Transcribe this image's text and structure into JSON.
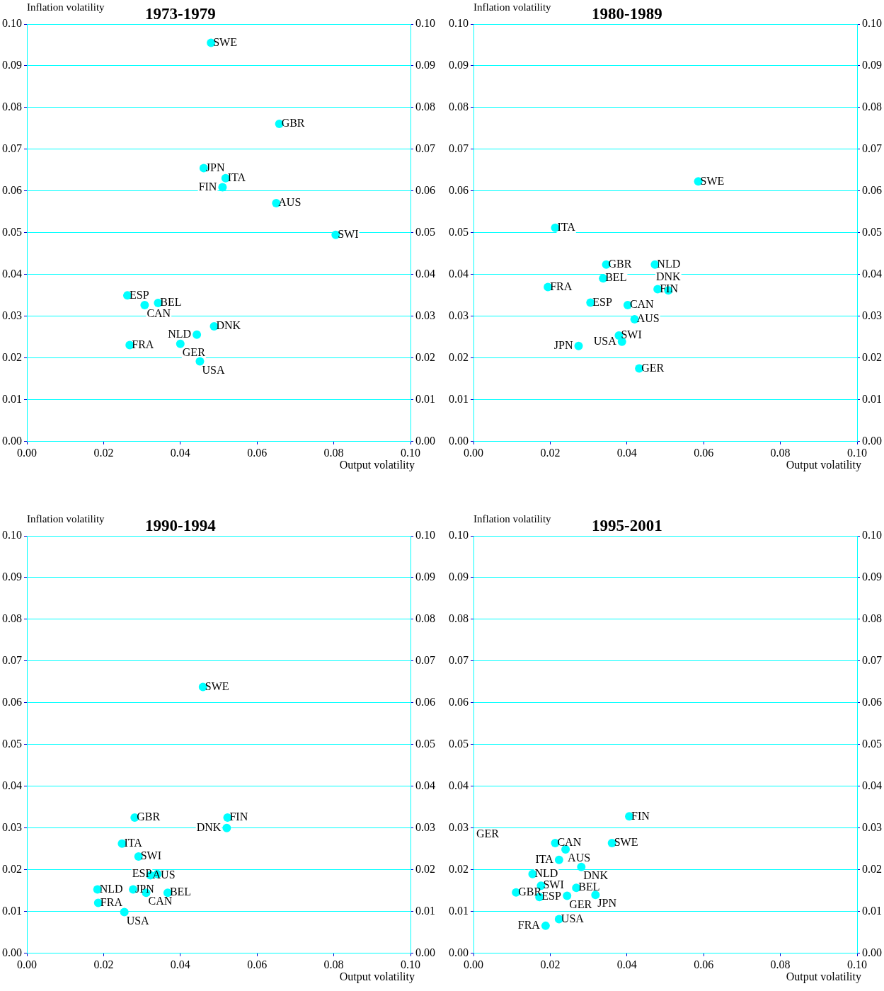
{
  "chart_data": [
    {
      "type": "scatter",
      "title": "1973-1979",
      "xlabel": "Output volatility",
      "ylabel": "Inflation volatility",
      "color": "#00ffff",
      "marker": "circle",
      "grid": "y",
      "xlim": [
        0,
        0.1
      ],
      "ylim": [
        0,
        0.1
      ],
      "y2lim": [
        0,
        0.1
      ],
      "xticks": [
        {
          "value": 0,
          "label": "0.00"
        },
        {
          "value": 0.02,
          "label": "0.02"
        },
        {
          "value": 0.04,
          "label": "0.04"
        },
        {
          "value": 0.06,
          "label": "0.06"
        },
        {
          "value": 0.08,
          "label": "0.08"
        },
        {
          "value": 0.1,
          "label": "0.10"
        }
      ],
      "yticks": [
        {
          "value": 0,
          "label": "0.00"
        },
        {
          "value": 0.01,
          "label": "0.01"
        },
        {
          "value": 0.02,
          "label": "0.02"
        },
        {
          "value": 0.03,
          "label": "0.03"
        },
        {
          "value": 0.04,
          "label": "0.04"
        },
        {
          "value": 0.05,
          "label": "0.05"
        },
        {
          "value": 0.06,
          "label": "0.06"
        },
        {
          "value": 0.07,
          "label": "0.07"
        },
        {
          "value": 0.08,
          "label": "0.08"
        },
        {
          "value": 0.09,
          "label": "0.09"
        },
        {
          "value": 0.1,
          "label": "0.10"
        }
      ],
      "y2ticks": [
        {
          "value": 0,
          "label": "0.00"
        },
        {
          "value": 0.01,
          "label": "0.01"
        },
        {
          "value": 0.02,
          "label": "0.02"
        },
        {
          "value": 0.03,
          "label": "0.03"
        },
        {
          "value": 0.04,
          "label": "0.04"
        },
        {
          "value": 0.05,
          "label": "0.05"
        },
        {
          "value": 0.06,
          "label": "0.06"
        },
        {
          "value": 0.07,
          "label": "0.07"
        },
        {
          "value": 0.08,
          "label": "0.08"
        },
        {
          "value": 0.09,
          "label": "0.09"
        },
        {
          "value": 0.1,
          "label": "0.10"
        }
      ],
      "x": [
        0.048,
        0.0658,
        0.0461,
        0.0518,
        0.051,
        0.065,
        0.0805,
        0.0262,
        0.0307,
        0.0342,
        0.0488,
        0.0443,
        0.0268,
        0.04,
        0.0451
      ],
      "values": [
        0.0955,
        0.0761,
        0.0655,
        0.0631,
        0.0609,
        0.0571,
        0.0495,
        0.035,
        0.0327,
        0.0332,
        0.0276,
        0.0256,
        0.0231,
        0.0234,
        0.0192
      ],
      "annotations": [
        {
          "text": "SWE",
          "x": 0.048,
          "y": 0.0955
        },
        {
          "text": "GBR",
          "x": 0.0658,
          "y": 0.0761
        },
        {
          "text": "JPN",
          "x": 0.0461,
          "y": 0.0655
        },
        {
          "text": "ITA",
          "x": 0.0518,
          "y": 0.0631
        },
        {
          "text": "FIN",
          "x": 0.051,
          "y": 0.0609
        },
        {
          "text": "AUS",
          "x": 0.065,
          "y": 0.0571
        },
        {
          "text": "SWI",
          "x": 0.0805,
          "y": 0.0495
        },
        {
          "text": "ESP",
          "x": 0.0262,
          "y": 0.035
        },
        {
          "text": "CAN",
          "x": 0.0307,
          "y": 0.0327
        },
        {
          "text": "BEL",
          "x": 0.0342,
          "y": 0.0332
        },
        {
          "text": "DNK",
          "x": 0.0488,
          "y": 0.0276
        },
        {
          "text": "NLD",
          "x": 0.0443,
          "y": 0.0256
        },
        {
          "text": "FRA",
          "x": 0.0268,
          "y": 0.0231
        },
        {
          "text": "GER",
          "x": 0.04,
          "y": 0.0234
        },
        {
          "text": "USA",
          "x": 0.0451,
          "y": 0.0192
        }
      ]
    },
    {
      "type": "scatter",
      "title": "1980-1989",
      "xlabel": "Output volatility",
      "ylabel": "Inflation volatility",
      "color": "#00ffff",
      "marker": "circle",
      "grid": "y",
      "xlim": [
        0,
        0.1
      ],
      "ylim": [
        0,
        0.1
      ],
      "y2lim": [
        0,
        0.1
      ],
      "xticks": [
        {
          "value": 0,
          "label": "0.00"
        },
        {
          "value": 0.02,
          "label": "0.02"
        },
        {
          "value": 0.04,
          "label": "0.04"
        },
        {
          "value": 0.06,
          "label": "0.06"
        },
        {
          "value": 0.08,
          "label": "0.08"
        },
        {
          "value": 0.1,
          "label": "0.10"
        }
      ],
      "yticks": [
        {
          "value": 0,
          "label": "0.00"
        },
        {
          "value": 0.01,
          "label": "0.01"
        },
        {
          "value": 0.02,
          "label": "0.02"
        },
        {
          "value": 0.03,
          "label": "0.03"
        },
        {
          "value": 0.04,
          "label": "0.04"
        },
        {
          "value": 0.05,
          "label": "0.05"
        },
        {
          "value": 0.06,
          "label": "0.06"
        },
        {
          "value": 0.07,
          "label": "0.07"
        },
        {
          "value": 0.08,
          "label": "0.08"
        },
        {
          "value": 0.09,
          "label": "0.09"
        },
        {
          "value": 0.1,
          "label": "0.10"
        }
      ],
      "y2ticks": [
        {
          "value": 0,
          "label": "0.00"
        },
        {
          "value": 0.01,
          "label": "0.01"
        },
        {
          "value": 0.02,
          "label": "0.02"
        },
        {
          "value": 0.03,
          "label": "0.03"
        },
        {
          "value": 0.04,
          "label": "0.04"
        },
        {
          "value": 0.05,
          "label": "0.05"
        },
        {
          "value": 0.06,
          "label": "0.06"
        },
        {
          "value": 0.07,
          "label": "0.07"
        },
        {
          "value": 0.08,
          "label": "0.08"
        },
        {
          "value": 0.09,
          "label": "0.09"
        },
        {
          "value": 0.1,
          "label": "0.10"
        }
      ],
      "x": [
        0.0586,
        0.0213,
        0.0346,
        0.0473,
        0.0338,
        0.0194,
        0.048,
        0.0508,
        0.0305,
        0.0402,
        0.042,
        0.0379,
        0.0387,
        0.0274,
        0.0432
      ],
      "values": [
        0.0623,
        0.0512,
        0.0424,
        0.0424,
        0.0391,
        0.037,
        0.0365,
        0.0362,
        0.0333,
        0.0327,
        0.0293,
        0.0254,
        0.0239,
        0.0229,
        0.0175
      ],
      "annotations": [
        {
          "text": "SWE",
          "x": 0.0586,
          "y": 0.0623
        },
        {
          "text": "ITA",
          "x": 0.0213,
          "y": 0.0512
        },
        {
          "text": "GBR",
          "x": 0.0346,
          "y": 0.0424
        },
        {
          "text": "NLD",
          "x": 0.0473,
          "y": 0.0424
        },
        {
          "text": "BEL",
          "x": 0.0338,
          "y": 0.0391
        },
        {
          "text": "FRA",
          "x": 0.0194,
          "y": 0.037
        },
        {
          "text": "FIN",
          "x": 0.048,
          "y": 0.0365
        },
        {
          "text": "DNK",
          "x": 0.0508,
          "y": 0.0362
        },
        {
          "text": "ESP",
          "x": 0.0305,
          "y": 0.0333
        },
        {
          "text": "CAN",
          "x": 0.0402,
          "y": 0.0327
        },
        {
          "text": "AUS",
          "x": 0.042,
          "y": 0.0293
        },
        {
          "text": "SWI",
          "x": 0.0379,
          "y": 0.0254
        },
        {
          "text": "USA",
          "x": 0.0387,
          "y": 0.0239
        },
        {
          "text": "JPN",
          "x": 0.0274,
          "y": 0.0229
        },
        {
          "text": "GER",
          "x": 0.0432,
          "y": 0.0175
        }
      ]
    },
    {
      "type": "scatter",
      "title": "1990-1994",
      "xlabel": "Output volatility",
      "ylabel": "Inflation volatility",
      "color": "#00ffff",
      "marker": "circle",
      "grid": "y",
      "xlim": [
        0,
        0.1
      ],
      "ylim": [
        0,
        0.1
      ],
      "y2lim": [
        0,
        0.1
      ],
      "xticks": [
        {
          "value": 0,
          "label": "0.00"
        },
        {
          "value": 0.02,
          "label": "0.02"
        },
        {
          "value": 0.04,
          "label": "0.04"
        },
        {
          "value": 0.06,
          "label": "0.06"
        },
        {
          "value": 0.08,
          "label": "0.08"
        },
        {
          "value": 0.1,
          "label": "0.10"
        }
      ],
      "yticks": [
        {
          "value": 0,
          "label": "0.00"
        },
        {
          "value": 0.01,
          "label": "0.01"
        },
        {
          "value": 0.02,
          "label": "0.02"
        },
        {
          "value": 0.03,
          "label": "0.03"
        },
        {
          "value": 0.04,
          "label": "0.04"
        },
        {
          "value": 0.05,
          "label": "0.05"
        },
        {
          "value": 0.06,
          "label": "0.06"
        },
        {
          "value": 0.07,
          "label": "0.07"
        },
        {
          "value": 0.08,
          "label": "0.08"
        },
        {
          "value": 0.09,
          "label": "0.09"
        },
        {
          "value": 0.1,
          "label": "0.10"
        }
      ],
      "y2ticks": [
        {
          "value": 0,
          "label": "0.00"
        },
        {
          "value": 0.01,
          "label": "0.01"
        },
        {
          "value": 0.02,
          "label": "0.02"
        },
        {
          "value": 0.03,
          "label": "0.03"
        },
        {
          "value": 0.04,
          "label": "0.04"
        },
        {
          "value": 0.05,
          "label": "0.05"
        },
        {
          "value": 0.06,
          "label": "0.06"
        },
        {
          "value": 0.07,
          "label": "0.07"
        },
        {
          "value": 0.08,
          "label": "0.08"
        },
        {
          "value": 0.09,
          "label": "0.09"
        },
        {
          "value": 0.1,
          "label": "0.10"
        }
      ],
      "x": [
        0.0459,
        0.0281,
        0.0523,
        0.0521,
        0.0248,
        0.0291,
        0.0322,
        0.034,
        0.0184,
        0.0277,
        0.0311,
        0.0367,
        0.0186,
        0.0254
      ],
      "values": [
        0.0638,
        0.0325,
        0.0325,
        0.03,
        0.0263,
        0.0232,
        0.0187,
        0.019,
        0.0153,
        0.0153,
        0.0145,
        0.0145,
        0.0121,
        0.0099
      ],
      "annotations": [
        {
          "text": "SWE",
          "x": 0.0459,
          "y": 0.0638
        },
        {
          "text": "GBR",
          "x": 0.0281,
          "y": 0.0325
        },
        {
          "text": "FIN",
          "x": 0.0523,
          "y": 0.0325
        },
        {
          "text": "DNK",
          "x": 0.0521,
          "y": 0.03
        },
        {
          "text": "ITA",
          "x": 0.0248,
          "y": 0.0263
        },
        {
          "text": "SWI",
          "x": 0.0291,
          "y": 0.0232
        },
        {
          "text": "AUS",
          "x": 0.0322,
          "y": 0.0187
        },
        {
          "text": "ESP",
          "x": 0.034,
          "y": 0.019
        },
        {
          "text": "NLD",
          "x": 0.0184,
          "y": 0.0153
        },
        {
          "text": "JPN",
          "x": 0.0277,
          "y": 0.0153
        },
        {
          "text": "CAN",
          "x": 0.0311,
          "y": 0.0145
        },
        {
          "text": "BEL",
          "x": 0.0367,
          "y": 0.0145
        },
        {
          "text": "FRA",
          "x": 0.0186,
          "y": 0.0121
        },
        {
          "text": "USA",
          "x": 0.0254,
          "y": 0.0099
        }
      ]
    },
    {
      "type": "scatter",
      "title": "1995-2001",
      "xlabel": "Output volatility",
      "ylabel": "Inflation volatility",
      "color": "#00ffff",
      "marker": "circle",
      "grid": "y",
      "xlim": [
        0,
        0.1
      ],
      "ylim": [
        0,
        0.1
      ],
      "y2lim": [
        0,
        0.1
      ],
      "xticks": [
        {
          "value": 0,
          "label": "0.00"
        },
        {
          "value": 0.02,
          "label": "0.02"
        },
        {
          "value": 0.04,
          "label": "0.04"
        },
        {
          "value": 0.06,
          "label": "0.06"
        },
        {
          "value": 0.08,
          "label": "0.08"
        },
        {
          "value": 0.1,
          "label": "0.10"
        }
      ],
      "yticks": [
        {
          "value": 0,
          "label": "0.00"
        },
        {
          "value": 0.01,
          "label": "0.01"
        },
        {
          "value": 0.02,
          "label": "0.02"
        },
        {
          "value": 0.03,
          "label": "0.03"
        },
        {
          "value": 0.04,
          "label": "0.04"
        },
        {
          "value": 0.05,
          "label": "0.05"
        },
        {
          "value": 0.06,
          "label": "0.06"
        },
        {
          "value": 0.07,
          "label": "0.07"
        },
        {
          "value": 0.08,
          "label": "0.08"
        },
        {
          "value": 0.09,
          "label": "0.09"
        },
        {
          "value": 0.1,
          "label": "0.10"
        }
      ],
      "y2ticks": [
        {
          "value": 0,
          "label": "0.00"
        },
        {
          "value": 0.01,
          "label": "0.01"
        },
        {
          "value": 0.02,
          "label": "0.02"
        },
        {
          "value": 0.03,
          "label": "0.03"
        },
        {
          "value": 0.04,
          "label": "0.04"
        },
        {
          "value": 0.05,
          "label": "0.05"
        },
        {
          "value": 0.06,
          "label": "0.06"
        },
        {
          "value": 0.07,
          "label": "0.07"
        },
        {
          "value": 0.08,
          "label": "0.08"
        },
        {
          "value": 0.09,
          "label": "0.09"
        },
        {
          "value": 0.1,
          "label": "0.10"
        }
      ],
      "x": [
        0.0406,
        0.0361,
        0.0213,
        0.024,
        0.0223,
        0.0281,
        0.0154,
        0.0176,
        0.0268,
        0.0111,
        0.0172,
        0.0244,
        0.0318,
        0.0223,
        0.0188
      ],
      "values": [
        0.0328,
        0.0264,
        0.0264,
        0.0249,
        0.0224,
        0.0207,
        0.019,
        0.0162,
        0.0157,
        0.0146,
        0.0135,
        0.0138,
        0.014,
        0.0082,
        0.0066
      ],
      "annotations": [
        "GER",
        {
          "text": "FIN",
          "x": 0.0406,
          "y": 0.0328
        },
        {
          "text": "SWE",
          "x": 0.0361,
          "y": 0.0264
        },
        {
          "text": "CAN",
          "x": 0.0213,
          "y": 0.0264
        },
        {
          "text": "AUS",
          "x": 0.024,
          "y": 0.0249
        },
        {
          "text": "ITA",
          "x": 0.0223,
          "y": 0.0224
        },
        {
          "text": "DNK",
          "x": 0.0281,
          "y": 0.0207
        },
        {
          "text": "NLD",
          "x": 0.0154,
          "y": 0.019
        },
        {
          "text": "SWI",
          "x": 0.0176,
          "y": 0.0162
        },
        {
          "text": "BEL",
          "x": 0.0268,
          "y": 0.0157
        },
        {
          "text": "GBR",
          "x": 0.0111,
          "y": 0.0146
        },
        {
          "text": "ESP",
          "x": 0.0172,
          "y": 0.0135
        },
        {
          "text": "GER",
          "x": 0.0244,
          "y": 0.0138
        },
        {
          "text": "JPN",
          "x": 0.0318,
          "y": 0.014
        },
        {
          "text": "USA",
          "x": 0.0223,
          "y": 0.0082
        },
        {
          "text": "FRA",
          "x": 0.0188,
          "y": 0.0066
        }
      ]
    }
  ]
}
